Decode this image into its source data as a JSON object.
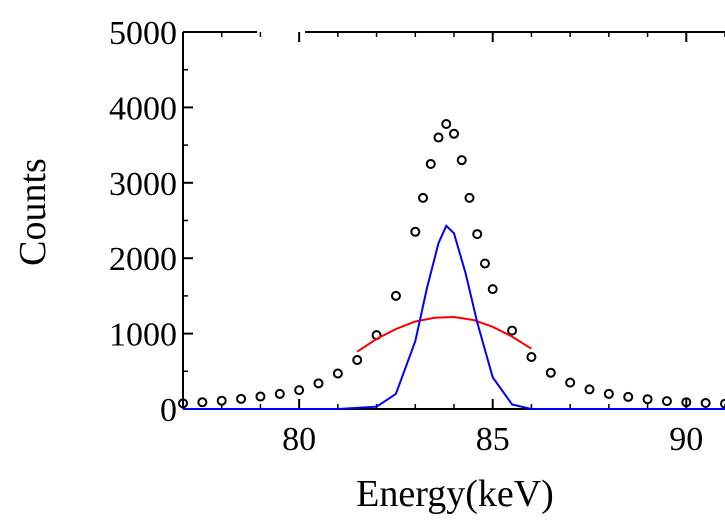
{
  "chart_data": {
    "type": "scatter",
    "title": "",
    "xlabel": "Energy(keV)",
    "ylabel": "Counts",
    "xlim": [
      77,
      91
    ],
    "ylim": [
      0,
      5000
    ],
    "xticks": [
      80,
      85,
      90
    ],
    "yticks": [
      0,
      1000,
      2000,
      3000,
      4000,
      5000
    ],
    "xtick_labels": [
      "80",
      "85",
      "90"
    ],
    "ytick_labels": [
      "0",
      "1000",
      "2000",
      "3000",
      "4000",
      "5000"
    ],
    "grid": false,
    "legend": "none",
    "series": [
      {
        "kind": "scatter",
        "color": "#000000",
        "marker": "open-circle",
        "x": [
          77.0,
          77.5,
          78.0,
          78.5,
          79.0,
          79.5,
          80.0,
          80.5,
          81.0,
          81.5,
          82.0,
          82.5,
          83.0,
          83.2,
          83.4,
          83.6,
          83.8,
          84.0,
          84.2,
          84.4,
          84.6,
          84.8,
          85.0,
          85.5,
          86.0,
          86.5,
          87.0,
          87.5,
          88.0,
          88.5,
          89.0,
          89.5,
          90.0,
          90.5,
          91.0
        ],
        "y": [
          75,
          90,
          110,
          135,
          165,
          200,
          250,
          340,
          470,
          650,
          980,
          1500,
          2350,
          2800,
          3250,
          3600,
          3780,
          3650,
          3300,
          2800,
          2320,
          1930,
          1590,
          1040,
          690,
          480,
          350,
          260,
          200,
          160,
          130,
          105,
          90,
          80,
          70
        ]
      },
      {
        "kind": "line",
        "color": "#ff0000",
        "x": [
          81.5,
          82.0,
          82.5,
          83.0,
          83.5,
          84.0,
          84.5,
          85.0,
          85.5,
          86.0
        ],
        "y": [
          760,
          930,
          1060,
          1160,
          1210,
          1220,
          1180,
          1090,
          960,
          800
        ]
      },
      {
        "kind": "line",
        "color": "#0000ff",
        "x": [
          77.0,
          81.0,
          82.0,
          82.5,
          83.0,
          83.3,
          83.6,
          83.8,
          84.0,
          84.3,
          84.6,
          85.0,
          85.5,
          86.0,
          88.0,
          91.0
        ],
        "y": [
          0,
          0,
          30,
          200,
          900,
          1600,
          2200,
          2430,
          2330,
          1800,
          1150,
          420,
          60,
          0,
          0,
          0
        ]
      }
    ]
  }
}
